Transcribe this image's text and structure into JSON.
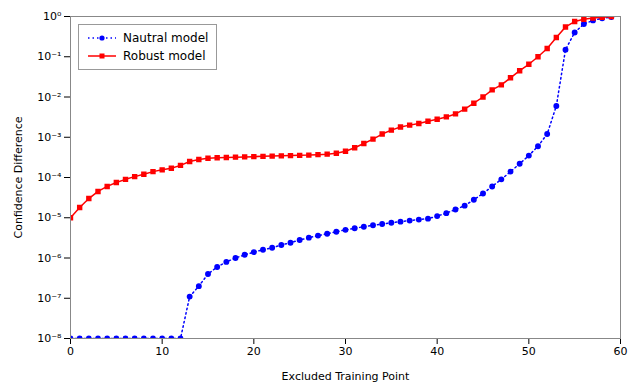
{
  "chart_data": {
    "type": "line",
    "xlabel": "Excluded Training Point",
    "ylabel": "Confidence Difference",
    "log": "y",
    "grid": false,
    "legend": "upper left",
    "xlim": [
      0,
      60
    ],
    "xticks": [
      0,
      10,
      20,
      30,
      40,
      50,
      60
    ],
    "ylim": [
      1e-08,
      1
    ],
    "yticks": [
      {
        "value": 1e-08,
        "label": "10⁻⁸"
      },
      {
        "value": 1e-07,
        "label": "10⁻⁷"
      },
      {
        "value": 1e-06,
        "label": "10⁻⁶"
      },
      {
        "value": 1e-05,
        "label": "10⁻⁵"
      },
      {
        "value": 0.0001,
        "label": "10⁻⁴"
      },
      {
        "value": 0.001,
        "label": "10⁻³"
      },
      {
        "value": 0.01,
        "label": "10⁻²"
      },
      {
        "value": 0.1,
        "label": "10⁻¹"
      },
      {
        "value": 1,
        "label": "10⁰"
      }
    ],
    "x": [
      0,
      1,
      2,
      3,
      4,
      5,
      6,
      7,
      8,
      9,
      10,
      11,
      12,
      13,
      14,
      15,
      16,
      17,
      18,
      19,
      20,
      21,
      22,
      23,
      24,
      25,
      26,
      27,
      28,
      29,
      30,
      31,
      32,
      33,
      34,
      35,
      36,
      37,
      38,
      39,
      40,
      41,
      42,
      43,
      44,
      45,
      46,
      47,
      48,
      49,
      50,
      51,
      52,
      53,
      54,
      55,
      56,
      57,
      58,
      59
    ],
    "series": [
      {
        "name": "Nautral model",
        "color": "#0000ff",
        "line_style": "dotted",
        "marker": "circle",
        "values": [
          1e-08,
          1e-08,
          1e-08,
          1e-08,
          1e-08,
          1e-08,
          1e-08,
          1e-08,
          1e-08,
          1e-08,
          1e-08,
          1e-08,
          1e-08,
          1.1e-07,
          2e-07,
          4e-07,
          6e-07,
          8e-07,
          1e-06,
          1.2e-06,
          1.4e-06,
          1.6e-06,
          1.8e-06,
          2.1e-06,
          2.4e-06,
          2.8e-06,
          3.2e-06,
          3.6e-06,
          4e-06,
          4.5e-06,
          5e-06,
          5.5e-06,
          6e-06,
          6.5e-06,
          7e-06,
          7.5e-06,
          8e-06,
          8.5e-06,
          9e-06,
          9.5e-06,
          1.1e-05,
          1.3e-05,
          1.6e-05,
          2e-05,
          2.8e-05,
          4e-05,
          6e-05,
          9e-05,
          0.00014,
          0.00022,
          0.00035,
          0.0006,
          0.0012,
          0.006,
          0.15,
          0.4,
          0.65,
          0.8,
          0.9,
          0.97
        ]
      },
      {
        "name": "Robust model",
        "color": "#ff0000",
        "line_style": "solid",
        "marker": "square",
        "values": [
          1e-05,
          1.8e-05,
          3e-05,
          4.5e-05,
          6e-05,
          7.5e-05,
          9e-05,
          0.000105,
          0.00012,
          0.00014,
          0.000155,
          0.00017,
          0.0002,
          0.00025,
          0.00028,
          0.0003,
          0.00031,
          0.000315,
          0.00032,
          0.000325,
          0.00033,
          0.000335,
          0.00034,
          0.000345,
          0.00035,
          0.000355,
          0.00036,
          0.00037,
          0.00038,
          0.0004,
          0.00045,
          0.00055,
          0.0007,
          0.0009,
          0.0012,
          0.0015,
          0.0018,
          0.002,
          0.0022,
          0.0025,
          0.0028,
          0.0032,
          0.0038,
          0.005,
          0.007,
          0.01,
          0.015,
          0.02,
          0.03,
          0.045,
          0.065,
          0.1,
          0.16,
          0.3,
          0.55,
          0.75,
          0.85,
          0.92,
          0.96,
          0.99
        ]
      }
    ]
  }
}
